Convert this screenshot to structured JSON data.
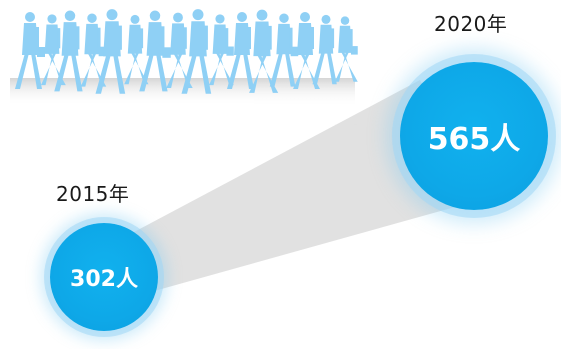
{
  "stats": [
    {
      "year_label": "2015年",
      "value_label": "302人",
      "value": 302
    },
    {
      "year_label": "2020年",
      "value_label": "565人",
      "value": 565
    }
  ],
  "colors": {
    "bubble": "#0ea8e8",
    "glow": "#a0d7f5",
    "crowd": "#8fd0f5",
    "crowd_shadow": "#cfcfcf",
    "connector": "#d9d9d9"
  },
  "icons": {
    "crowd": "walking-people-crowd-illustration"
  }
}
